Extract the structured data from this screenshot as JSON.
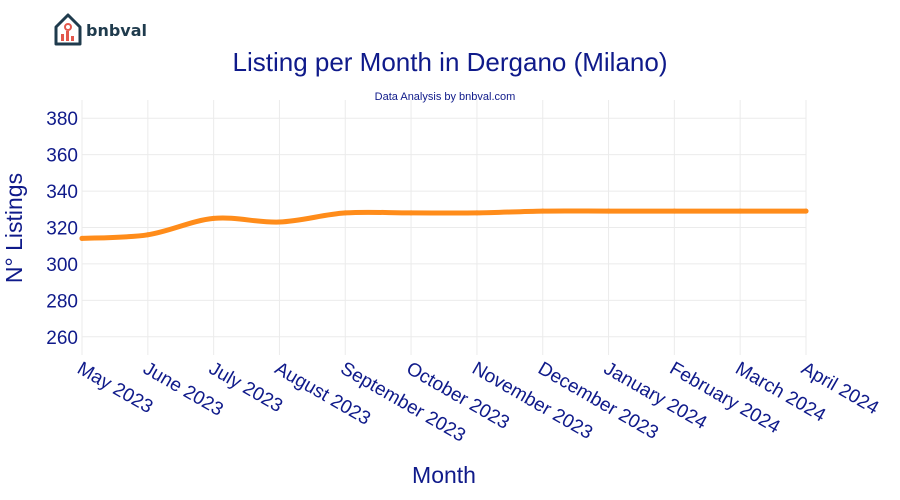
{
  "brand": {
    "name": "bnbval"
  },
  "colors": {
    "line": "#ff8c1a",
    "text": "#0f1a8a",
    "grid": "#ebebeb",
    "logo": "#1f3b4d",
    "logo_accent": "#e2574c"
  },
  "chart_data": {
    "type": "line",
    "title": "Listing per Month in Dergano (Milano)",
    "subtitle": "Data Analysis by bnbval.com",
    "xlabel": "Month",
    "ylabel": "N° Listings",
    "categories": [
      "May 2023",
      "June 2023",
      "July 2023",
      "August 2023",
      "September 2023",
      "October 2023",
      "November 2023",
      "December 2023",
      "January 2024",
      "February 2024",
      "March 2024",
      "April 2024"
    ],
    "series": [
      {
        "values": [
          314,
          316,
          325,
          323,
          328,
          328,
          328,
          329,
          329,
          329,
          329,
          329
        ]
      }
    ],
    "ylim": [
      250,
      390
    ],
    "yticks": [
      260,
      280,
      300,
      320,
      340,
      360,
      380
    ],
    "grid": true,
    "legend": false
  }
}
